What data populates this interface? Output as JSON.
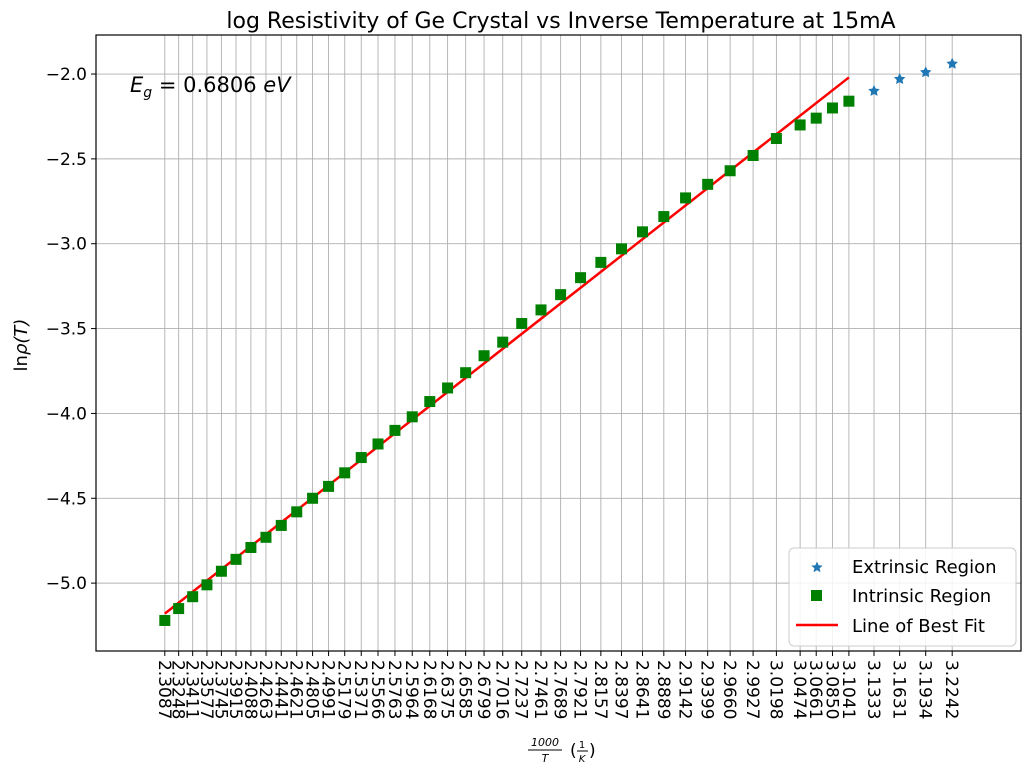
{
  "chart_data": {
    "type": "scatter",
    "title": "log Resistivity of Ge Crystal vs Inverse Temperature at 15mA",
    "xlabel_frac_num": "1000",
    "xlabel_frac_den": "T",
    "xlabel_unit_num": "1",
    "xlabel_unit_den": "K",
    "ylabel_main": "ln",
    "ylabel_rho": "ρ",
    "ylabel_arg": "(T)",
    "annotation_sym": "E",
    "annotation_sub": "g",
    "annotation_value": " = 0.6806 ",
    "annotation_unit": "eV",
    "ylim": [
      -5.4,
      -1.77
    ],
    "y_ticks": [
      -5.0,
      -4.5,
      -4.0,
      -3.5,
      -3.0,
      -2.5,
      -2.0
    ],
    "y_tick_labels": [
      "−5.0",
      "−4.5",
      "−4.0",
      "−3.5",
      "−3.0",
      "−2.5",
      "−2.0"
    ],
    "grid": true,
    "legend_position": "bottom-right",
    "x_categories": [
      "2.3087",
      "2.3248",
      "2.3411",
      "2.3577",
      "2.3745",
      "2.3915",
      "2.4088",
      "2.4263",
      "2.4441",
      "2.4621",
      "2.4805",
      "2.4991",
      "2.5179",
      "2.5371",
      "2.5566",
      "2.5763",
      "2.5964",
      "2.6168",
      "2.6375",
      "2.6585",
      "2.6799",
      "2.7016",
      "2.7237",
      "2.7461",
      "2.7689",
      "2.7921",
      "2.8157",
      "2.8397",
      "2.8641",
      "2.8889",
      "2.9142",
      "2.9399",
      "2.9660",
      "2.9927",
      "3.0198",
      "3.0474",
      "3.0661",
      "3.0850",
      "3.1041",
      "3.1333",
      "3.1631",
      "3.1934",
      "3.2242"
    ],
    "series": [
      {
        "name": "Extrinsic Region",
        "marker": "star",
        "color": "#1f77b4",
        "points": [
          [
            3.1333,
            -2.1
          ],
          [
            3.1631,
            -2.03
          ],
          [
            3.1934,
            -1.99
          ],
          [
            3.2242,
            -1.94
          ]
        ]
      },
      {
        "name": "Intrinsic Region",
        "marker": "square",
        "color": "#008000",
        "points": [
          [
            2.3087,
            -5.22
          ],
          [
            2.3248,
            -5.15
          ],
          [
            2.3411,
            -5.08
          ],
          [
            2.3577,
            -5.01
          ],
          [
            2.3745,
            -4.93
          ],
          [
            2.3915,
            -4.86
          ],
          [
            2.4088,
            -4.79
          ],
          [
            2.4263,
            -4.73
          ],
          [
            2.4441,
            -4.66
          ],
          [
            2.4621,
            -4.58
          ],
          [
            2.4805,
            -4.5
          ],
          [
            2.4991,
            -4.43
          ],
          [
            2.5179,
            -4.35
          ],
          [
            2.5371,
            -4.26
          ],
          [
            2.5566,
            -4.18
          ],
          [
            2.5763,
            -4.1
          ],
          [
            2.5964,
            -4.02
          ],
          [
            2.6168,
            -3.93
          ],
          [
            2.6375,
            -3.85
          ],
          [
            2.6585,
            -3.76
          ],
          [
            2.6799,
            -3.66
          ],
          [
            2.7016,
            -3.58
          ],
          [
            2.7237,
            -3.47
          ],
          [
            2.7461,
            -3.39
          ],
          [
            2.7689,
            -3.3
          ],
          [
            2.7921,
            -3.2
          ],
          [
            2.8157,
            -3.11
          ],
          [
            2.8397,
            -3.03
          ],
          [
            2.8641,
            -2.93
          ],
          [
            2.8889,
            -2.84
          ],
          [
            2.9142,
            -2.73
          ],
          [
            2.9399,
            -2.65
          ],
          [
            2.966,
            -2.57
          ],
          [
            2.9927,
            -2.48
          ],
          [
            3.0198,
            -2.38
          ],
          [
            3.0474,
            -2.3
          ],
          [
            3.0661,
            -2.26
          ],
          [
            3.085,
            -2.2
          ],
          [
            3.1041,
            -2.16
          ]
        ]
      },
      {
        "name": "Line of Best Fit",
        "marker": "line",
        "color": "#ff0000",
        "points": [
          [
            2.3087,
            -5.18
          ],
          [
            3.1041,
            -2.02
          ]
        ]
      }
    ]
  }
}
